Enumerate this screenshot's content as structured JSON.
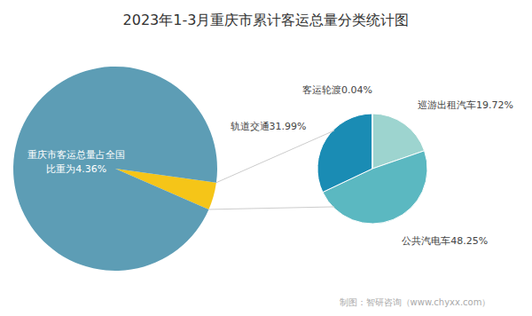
{
  "chart_data": [
    {
      "type": "pie",
      "title": "2023年1-3月重庆市累计客运总量分类统计图",
      "values": [
        4.36,
        95.64
      ],
      "colors": [
        "#F5C518",
        "#5D9DB5"
      ],
      "annotations": [
        "重庆市客运总量占全国",
        "比重为4.36%"
      ]
    },
    {
      "type": "pie",
      "categories": [
        "巡游出租汽车",
        "公共汽电车",
        "轨道交通",
        "客运轮渡"
      ],
      "values": [
        19.72,
        48.25,
        31.99,
        0.04
      ],
      "colors": [
        "#9DD4CF",
        "#5BB8C1",
        "#1A8CB4",
        "#5BB8C1"
      ],
      "data_labels": true,
      "value_labels": [
        "巡游出租汽车19.72%",
        "公共汽电车48.25%",
        "轨道交通31.99%",
        "客运轮渡0.04%"
      ],
      "annotations": [
        "制图：智研咨询（www.chyxx.com）"
      ]
    }
  ]
}
